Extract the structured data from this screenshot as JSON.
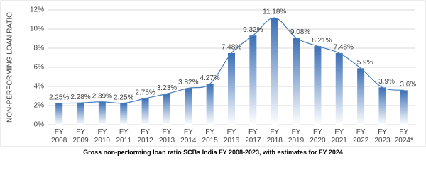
{
  "chart_data": {
    "type": "bar",
    "caption": "Gross non-performing loan ratio SCBs India FY 2008-2023, with estimates for FY 2024",
    "y_label": "NON-PERFORMING LOAN RATIO",
    "categories": [
      "FY 2008",
      "FY 2009",
      "FY 2010",
      "FY 2011",
      "FY 2012",
      "FY 2013",
      "FY 2014",
      "FY 2015",
      "FY 2016",
      "FY 2017",
      "FY 2018",
      "FY 2019",
      "FY 2020",
      "FY 2021",
      "FY 2022",
      "FY 2023",
      "FY 2024*"
    ],
    "values": [
      2.25,
      2.28,
      2.39,
      2.25,
      2.75,
      3.23,
      3.82,
      4.27,
      7.48,
      9.32,
      11.18,
      9.08,
      8.21,
      7.48,
      5.9,
      3.9,
      3.6
    ],
    "value_labels": [
      "2.25%",
      "2.28%",
      "2.39%",
      "2.25%",
      "2.75%",
      "3.23%",
      "3.82%",
      "4.27%",
      "7.48%",
      "9.32%",
      "11.18%",
      "9.08%",
      "8.21%",
      "7.48%",
      "5.9%",
      "3.9%",
      "3.6%"
    ],
    "color": "#3b6fb6",
    "line_color": "#4a7ebb",
    "ylim": [
      0,
      12
    ],
    "yticks": [
      {
        "value": 0,
        "label": "0%"
      },
      {
        "value": 2,
        "label": "2%"
      },
      {
        "value": 4,
        "label": "4%"
      },
      {
        "value": 6,
        "label": "6%"
      },
      {
        "value": 8,
        "label": "8%"
      },
      {
        "value": 10,
        "label": "10%"
      },
      {
        "value": 12,
        "label": "12%"
      }
    ],
    "grid": true
  }
}
